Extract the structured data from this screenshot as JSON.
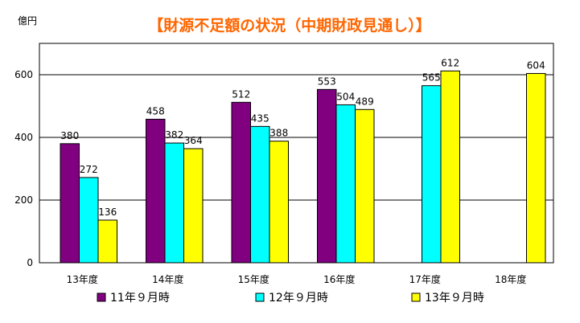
{
  "chart_data": {
    "type": "bar",
    "title": "【財源不足額の状況（中期財政見通し）】",
    "ylabel": "億円",
    "xlabel": "",
    "categories": [
      "13年度",
      "14年度",
      "15年度",
      "16年度",
      "17年度",
      "18年度"
    ],
    "series": [
      {
        "name": "11年９月時",
        "color": "#800080",
        "values": [
          380,
          458,
          512,
          553,
          null,
          null
        ]
      },
      {
        "name": "12年９月時",
        "color": "#00ffff",
        "values": [
          272,
          382,
          435,
          504,
          565,
          null
        ]
      },
      {
        "name": "13年９月時",
        "color": "#ffff00",
        "values": [
          136,
          364,
          388,
          489,
          612,
          604
        ]
      }
    ],
    "ylim": [
      0,
      700
    ],
    "yticks": [
      0,
      200,
      400,
      600
    ],
    "grid": true,
    "legend_position": "bottom",
    "title_color": "#ff6600",
    "plot_background": "#ffffff"
  }
}
